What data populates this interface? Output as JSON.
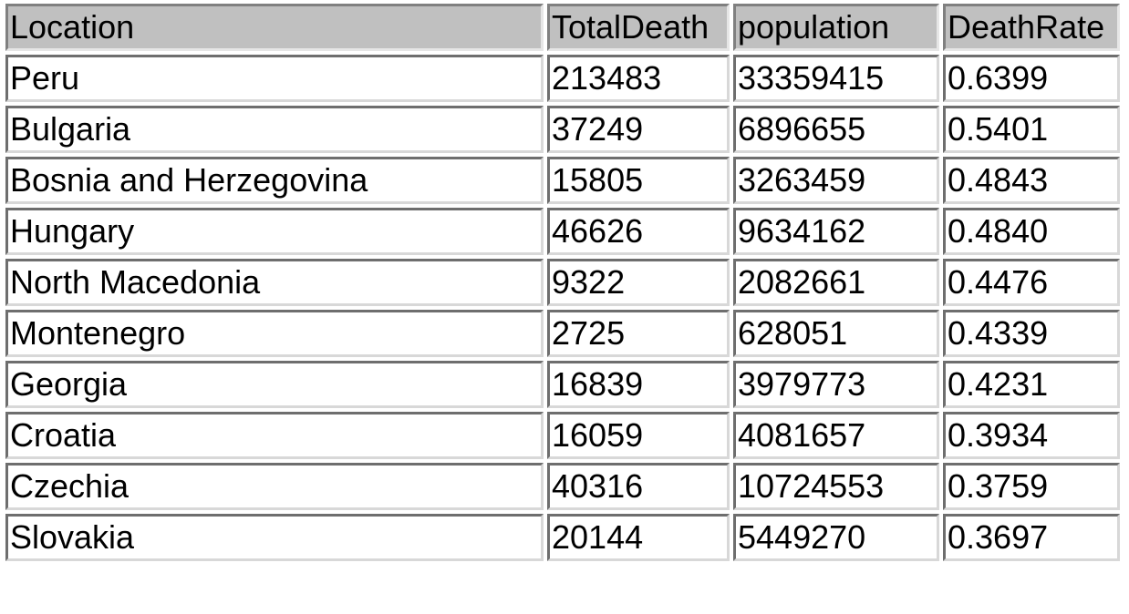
{
  "table": {
    "headers": [
      "Location",
      "TotalDeath",
      "population",
      "DeathRate"
    ],
    "rows": [
      [
        "Peru",
        "213483",
        "33359415",
        "0.6399"
      ],
      [
        "Bulgaria",
        "37249",
        "6896655",
        "0.5401"
      ],
      [
        "Bosnia and Herzegovina",
        "15805",
        "3263459",
        "0.4843"
      ],
      [
        "Hungary",
        "46626",
        "9634162",
        "0.4840"
      ],
      [
        "North Macedonia",
        "9322",
        "2082661",
        "0.4476"
      ],
      [
        "Montenegro",
        "2725",
        "628051",
        "0.4339"
      ],
      [
        "Georgia",
        "16839",
        "3979773",
        "0.4231"
      ],
      [
        "Croatia",
        "16059",
        "4081657",
        "0.3934"
      ],
      [
        "Czechia",
        "40316",
        "10724553",
        "0.3759"
      ],
      [
        "Slovakia",
        "20144",
        "5449270",
        "0.3697"
      ]
    ]
  }
}
